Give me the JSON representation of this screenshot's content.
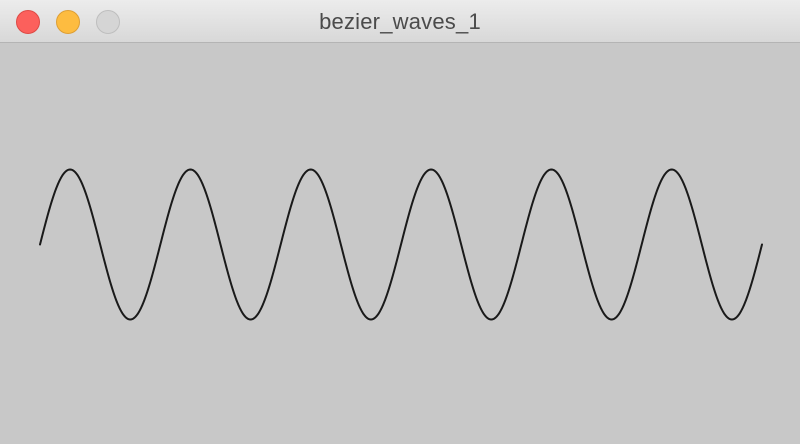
{
  "window": {
    "title": "bezier_waves_1",
    "controls": {
      "close_icon": "close-icon",
      "minimize_icon": "minimize-icon",
      "zoom_icon": "zoom-icon"
    }
  },
  "canvas": {
    "background_color": "#c8c8c8",
    "stroke_color": "#1a1a1a",
    "curve": {
      "type": "sine-wave",
      "cycles": 6,
      "amplitude": 75
    }
  }
}
